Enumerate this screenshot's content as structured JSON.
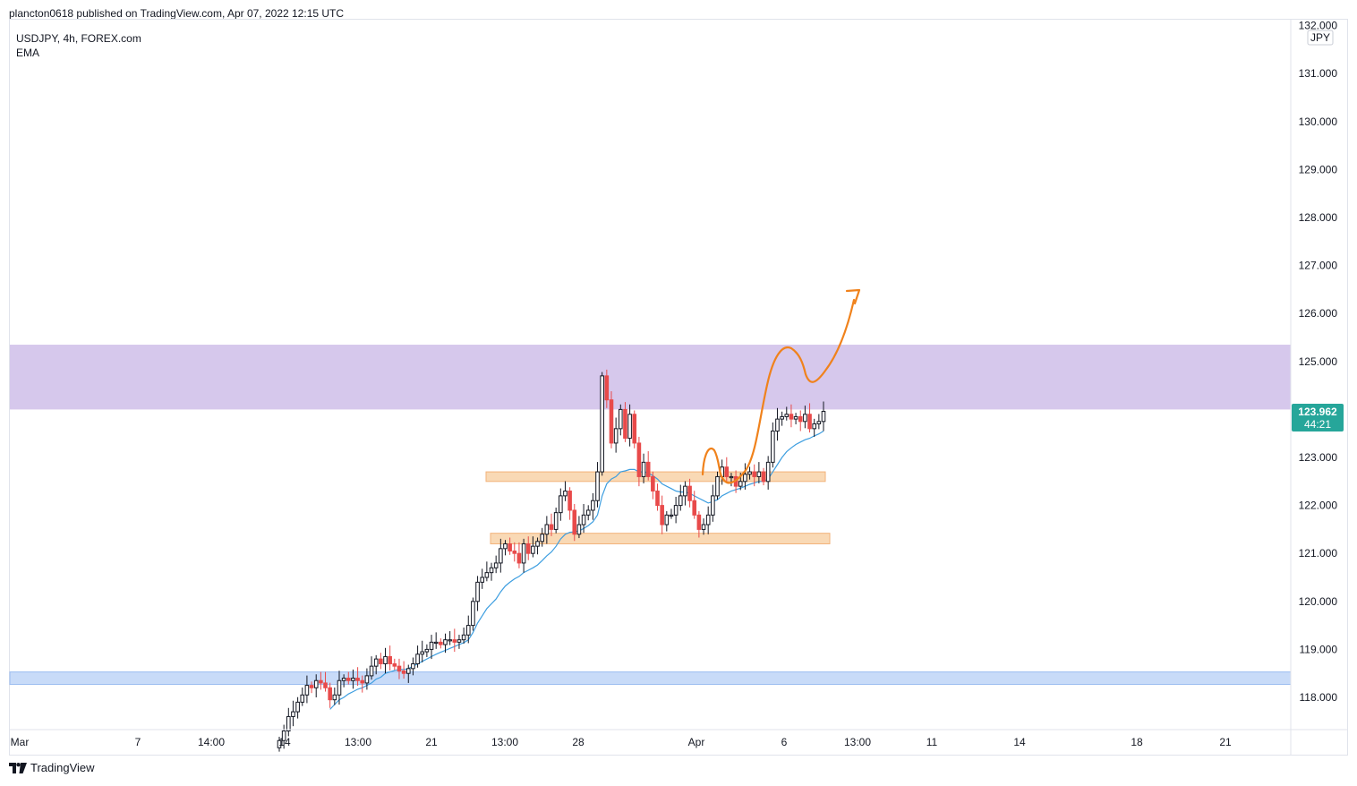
{
  "header": {
    "published": "plancton0618 published on TradingView.com, Apr 07, 2022 12:15 UTC"
  },
  "legend": {
    "symbol": "USDJPY, 4h, FOREX.com",
    "indicator": "EMA"
  },
  "footer": {
    "logo_icon": "tradingview-logo-icon",
    "brand": "TradingView"
  },
  "chart_data": {
    "type": "candlestick",
    "currency_badge": "JPY",
    "y_ticks": [
      "118.000",
      "119.000",
      "120.000",
      "121.000",
      "122.000",
      "123.000",
      "124.000",
      "125.000",
      "126.000",
      "127.000",
      "128.000",
      "129.000",
      "130.000",
      "131.000",
      "132.000"
    ],
    "x_ticks": [
      "Mar",
      "7",
      "14:00",
      "14",
      "13:00",
      "21",
      "13:00",
      "28",
      "Apr",
      "6",
      "13:00",
      "11",
      "14",
      "18",
      "21"
    ],
    "last_price": {
      "value": "123.962",
      "countdown": "44:21"
    },
    "colors": {
      "up": "#131722",
      "down": "#e84a4a",
      "ema": "#3d9ee0",
      "resistance_zone": "#d6c8ec",
      "support_zone": "#f9d9b5",
      "support_line": "#c8dbf8",
      "projection": "#f0821c",
      "price_label": "#26a69a"
    },
    "zones": [
      {
        "name": "resistance",
        "from": 124.0,
        "to": 125.35
      },
      {
        "name": "support-upper",
        "from": 122.5,
        "to": 122.7
      },
      {
        "name": "support-lower",
        "from": 121.2,
        "to": 121.42
      },
      {
        "name": "support-bottom",
        "from": 118.27,
        "to": 118.53
      }
    ],
    "candles_close": [
      117.1,
      117.3,
      117.6,
      117.7,
      117.9,
      118.05,
      118.25,
      118.2,
      118.35,
      118.3,
      118.2,
      117.95,
      118.05,
      118.35,
      118.4,
      118.35,
      118.4,
      118.35,
      118.3,
      118.45,
      118.65,
      118.8,
      118.7,
      118.85,
      118.7,
      118.65,
      118.55,
      118.5,
      118.6,
      118.7,
      118.9,
      118.95,
      119.0,
      119.15,
      119.15,
      119.1,
      119.2,
      119.2,
      119.15,
      119.2,
      119.3,
      119.5,
      120.0,
      120.4,
      120.5,
      120.6,
      120.7,
      120.8,
      121.1,
      121.2,
      121.05,
      121.0,
      120.8,
      121.2,
      121.0,
      121.15,
      121.25,
      121.4,
      121.6,
      121.5,
      121.85,
      122.2,
      122.3,
      121.9,
      121.4,
      121.6,
      121.8,
      121.9,
      122.1,
      122.7,
      124.7,
      124.2,
      123.3,
      123.6,
      124.0,
      123.4,
      123.9,
      123.3,
      122.6,
      122.9,
      122.6,
      122.3,
      122.0,
      121.6,
      121.8,
      121.8,
      122.0,
      122.2,
      122.4,
      122.1,
      121.8,
      121.5,
      121.6,
      121.8,
      122.2,
      122.6,
      122.8,
      122.6,
      122.6,
      122.4,
      122.5,
      122.65,
      122.7,
      122.6,
      122.7,
      122.5,
      122.9,
      123.55,
      123.8,
      123.85,
      123.9,
      123.8,
      123.85,
      123.75,
      123.9,
      123.6,
      123.7,
      123.75,
      123.96
    ],
    "ema_values": [
      null,
      null,
      null,
      null,
      null,
      null,
      null,
      null,
      null,
      null,
      null,
      117.75,
      117.85,
      117.95,
      118.0,
      118.07,
      118.12,
      118.17,
      118.2,
      118.25,
      118.3,
      118.38,
      118.42,
      118.5,
      118.53,
      118.56,
      118.58,
      118.58,
      118.6,
      118.65,
      118.7,
      118.75,
      118.8,
      118.85,
      118.9,
      118.94,
      118.98,
      119.02,
      119.06,
      119.1,
      119.14,
      119.2,
      119.35,
      119.55,
      119.7,
      119.85,
      119.95,
      120.05,
      120.2,
      120.32,
      120.4,
      120.47,
      120.52,
      120.6,
      120.65,
      120.7,
      120.76,
      120.85,
      120.95,
      121.03,
      121.15,
      121.3,
      121.4,
      121.44,
      121.45,
      121.47,
      121.52,
      121.58,
      121.66,
      121.8,
      122.2,
      122.45,
      122.55,
      122.6,
      122.7,
      122.72,
      122.75,
      122.75,
      122.7,
      122.7,
      122.68,
      122.62,
      122.55,
      122.45,
      122.4,
      122.35,
      122.3,
      122.28,
      122.28,
      122.25,
      122.2,
      122.15,
      122.1,
      122.05,
      122.08,
      122.12,
      122.2,
      122.25,
      122.3,
      122.33,
      122.36,
      122.4,
      122.44,
      122.47,
      122.5,
      122.5,
      122.55,
      122.7,
      122.85,
      123.0,
      123.12,
      123.2,
      123.27,
      123.32,
      123.37,
      123.4,
      123.45,
      123.49,
      123.55
    ]
  }
}
